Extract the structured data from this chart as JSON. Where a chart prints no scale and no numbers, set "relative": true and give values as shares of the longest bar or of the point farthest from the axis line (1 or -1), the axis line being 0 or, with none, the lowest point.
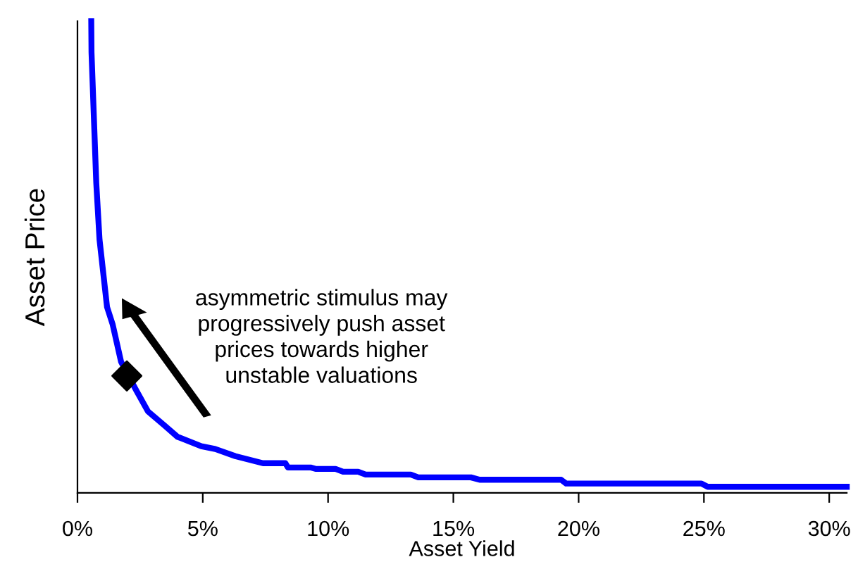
{
  "chart_data": {
    "type": "line",
    "relative": true,
    "xlabel": "Asset Yield",
    "ylabel": "Asset Price",
    "xlim": [
      0,
      30.7
    ],
    "xticks": [
      {
        "value": 0,
        "label": "0%"
      },
      {
        "value": 5,
        "label": "5%"
      },
      {
        "value": 10,
        "label": "10%"
      },
      {
        "value": 15,
        "label": "15%"
      },
      {
        "value": 20,
        "label": "20%"
      },
      {
        "value": 25,
        "label": "25%"
      },
      {
        "value": 30,
        "label": "30%"
      }
    ],
    "grid": false,
    "legend": false,
    "annotations": [
      "asymmetric stimulus may\nprogressively push asset\nprices towards higher\nunstable valuations"
    ],
    "series": [
      {
        "color": "#0000ff",
        "marker": "none",
        "x": [
          0.55,
          0.56,
          0.75,
          0.88,
          1.18,
          1.4,
          1.74,
          2.34,
          2.81,
          3.47,
          3.99,
          4.94,
          5.5,
          6.3,
          7.4,
          8.3,
          8.4,
          9.3,
          9.5,
          10.3,
          10.6,
          11.2,
          11.5,
          13.3,
          13.6,
          15.7,
          16.05,
          19.3,
          19.5,
          24.9,
          25.15,
          30.7
        ],
        "values": [
          1.0,
          0.934,
          0.657,
          0.537,
          0.394,
          0.358,
          0.278,
          0.218,
          0.173,
          0.143,
          0.119,
          0.099,
          0.093,
          0.078,
          0.063,
          0.063,
          0.054,
          0.054,
          0.051,
          0.051,
          0.045,
          0.045,
          0.039,
          0.039,
          0.033,
          0.033,
          0.028,
          0.028,
          0.02,
          0.02,
          0.013,
          0.013
        ]
      },
      {
        "type": "scatter",
        "color": "#000000",
        "marker": "diamond",
        "x": [
          1.97
        ],
        "values": [
          0.248
        ]
      }
    ]
  }
}
